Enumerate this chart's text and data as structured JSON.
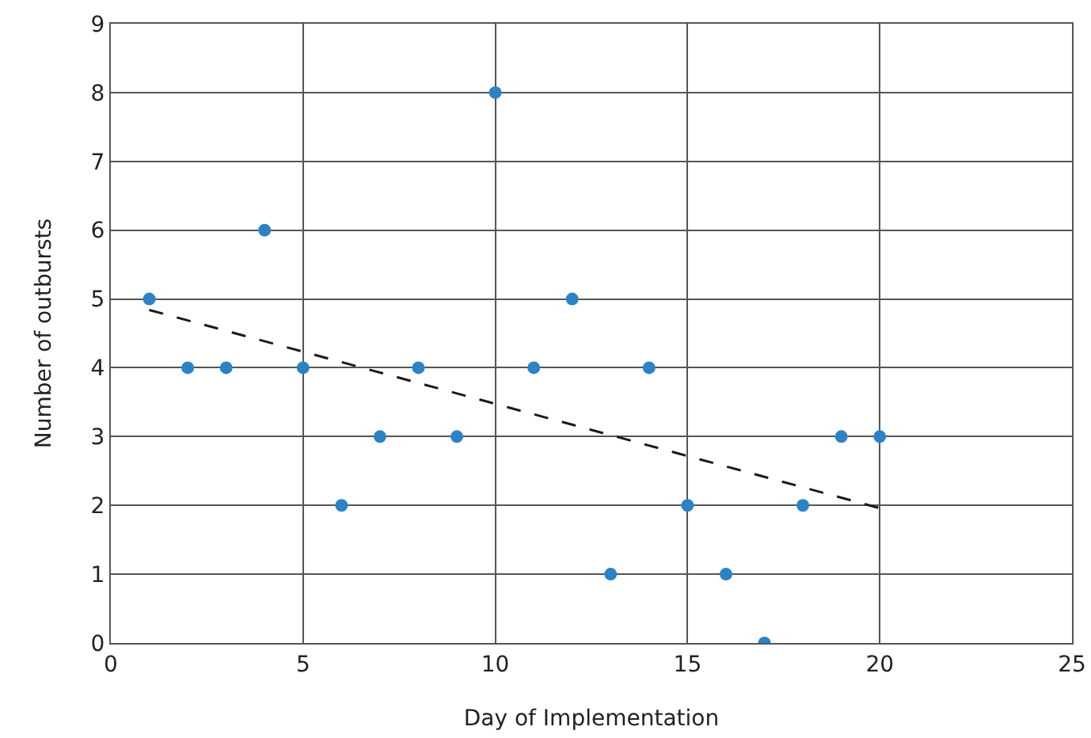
{
  "chart_data": {
    "type": "scatter",
    "xlabel": "Day of Implementation",
    "ylabel": "Number of outbursts",
    "xlim": [
      0,
      25
    ],
    "xticks": [
      0,
      5,
      10,
      15,
      20,
      25
    ],
    "ylim": [
      0,
      9
    ],
    "yticks": [
      0,
      1,
      2,
      3,
      4,
      5,
      6,
      7,
      8,
      9
    ],
    "grid": true,
    "series": [
      {
        "marker": "circle",
        "color": "#2b83c6",
        "x": [
          1,
          2,
          3,
          4,
          5,
          6,
          7,
          8,
          9,
          10,
          11,
          12,
          13,
          14,
          15,
          16,
          17,
          18,
          19,
          20
        ],
        "values": [
          5,
          4,
          4,
          6,
          4,
          2,
          3,
          4,
          3,
          8,
          4,
          5,
          1,
          4,
          2,
          1,
          0,
          2,
          3,
          3
        ]
      },
      {
        "type": "line",
        "color": "#1a1a1a",
        "line_style": "dashed",
        "x": [
          1,
          20
        ],
        "values": [
          4.84,
          1.96
        ]
      }
    ]
  }
}
